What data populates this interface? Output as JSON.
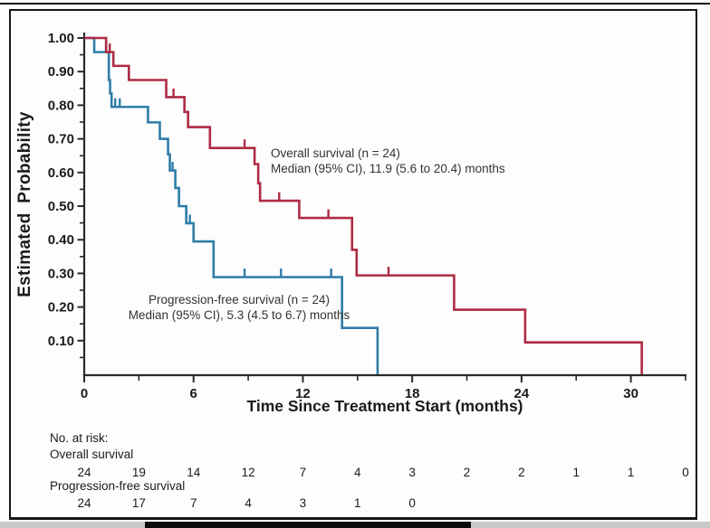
{
  "figure": {
    "background": "#fdfdfd",
    "frame_color": "#161616",
    "axis_color": "#2a2a2a",
    "text_color": "#1b1b1b",
    "os_color": "#ae2b44",
    "pfs_color": "#2f7da8"
  },
  "chart_data": {
    "type": "line",
    "variant": "kaplan-meier-step",
    "title": "",
    "xlabel": "Time Since Treatment Start (months)",
    "ylabel": "Estimated Probability",
    "xlim": [
      0,
      33
    ],
    "ylim": [
      0,
      1.0
    ],
    "x_major_ticks": [
      0,
      6,
      12,
      18,
      24,
      30
    ],
    "x_major_tick_labels": [
      "0",
      "6",
      "12",
      "18",
      "24",
      "30"
    ],
    "x_minor_ticks": [
      3,
      9,
      15,
      21,
      27,
      33
    ],
    "y_major_ticks": [
      1.0,
      0.9,
      0.8,
      0.7,
      0.6,
      0.5,
      0.4,
      0.3,
      0.2,
      0.1
    ],
    "y_major_tick_labels": [
      "1.00",
      "0.90",
      "0.80",
      "0.70",
      "0.60",
      "0.50",
      "0.40",
      "0.30",
      "0.20",
      "0.10"
    ],
    "y_minor_ticks": [
      0.95,
      0.85,
      0.75,
      0.65,
      0.55,
      0.45,
      0.35,
      0.25,
      0.15,
      0.05
    ],
    "legend_position": "inline-annotations",
    "grid": false,
    "series": [
      {
        "name": "Overall survival",
        "color": "#ae2b44",
        "n": 24,
        "median_months": 11.9,
        "ci_95": "5.6 to 20.4",
        "points": [
          [
            0,
            1.0
          ],
          [
            1.2,
            0.958
          ],
          [
            1.6,
            0.917
          ],
          [
            2.45,
            0.875
          ],
          [
            4.5,
            0.824
          ],
          [
            5.5,
            0.78
          ],
          [
            5.7,
            0.735
          ],
          [
            6.9,
            0.673
          ],
          [
            9.35,
            0.625
          ],
          [
            9.55,
            0.568
          ],
          [
            9.65,
            0.516
          ],
          [
            11.8,
            0.465
          ],
          [
            14.7,
            0.37
          ],
          [
            14.95,
            0.294
          ],
          [
            20.3,
            0.192
          ],
          [
            24.2,
            0.095
          ],
          [
            30.6,
            0.0
          ]
        ],
        "censors": [
          [
            1.4,
            0.958
          ],
          [
            4.9,
            0.824
          ],
          [
            8.8,
            0.673
          ],
          [
            10.7,
            0.516
          ],
          [
            13.4,
            0.465
          ],
          [
            16.7,
            0.294
          ]
        ],
        "annotation_line1": "Overall survival (n = 24)",
        "annotation_line2": "Median (95% CI), 11.9 (5.6 to 20.4) months"
      },
      {
        "name": "Progression-free survival",
        "color": "#2f7da8",
        "n": 24,
        "median_months": 5.3,
        "ci_95": "4.5 to 6.7",
        "points": [
          [
            0,
            1.0
          ],
          [
            0.55,
            0.958
          ],
          [
            1.35,
            0.875
          ],
          [
            1.42,
            0.835
          ],
          [
            1.5,
            0.795
          ],
          [
            3.5,
            0.749
          ],
          [
            4.15,
            0.7
          ],
          [
            4.6,
            0.654
          ],
          [
            4.7,
            0.606
          ],
          [
            5.0,
            0.554
          ],
          [
            5.2,
            0.5
          ],
          [
            5.6,
            0.449
          ],
          [
            6.0,
            0.395
          ],
          [
            7.1,
            0.289
          ],
          [
            14.15,
            0.138
          ],
          [
            16.1,
            0.0
          ]
        ],
        "censors": [
          [
            1.2,
            0.958
          ],
          [
            1.7,
            0.795
          ],
          [
            1.95,
            0.795
          ],
          [
            4.85,
            0.606
          ],
          [
            5.8,
            0.449
          ],
          [
            8.8,
            0.289
          ],
          [
            10.8,
            0.289
          ],
          [
            13.55,
            0.289
          ]
        ],
        "annotation_line1": "Progression-free survival (n = 24)",
        "annotation_line2": "Median (95% CI), 5.3 (4.5 to 6.7) months"
      }
    ],
    "risk_table": {
      "heading": "No. at risk:",
      "time_start": 0,
      "time_step": 3,
      "rows": [
        {
          "label": "Overall survival",
          "values": [
            24,
            19,
            14,
            12,
            7,
            4,
            3,
            2,
            2,
            1,
            1,
            0
          ]
        },
        {
          "label": "Progression-free survival",
          "values": [
            24,
            17,
            7,
            4,
            3,
            1,
            0
          ]
        }
      ]
    }
  }
}
